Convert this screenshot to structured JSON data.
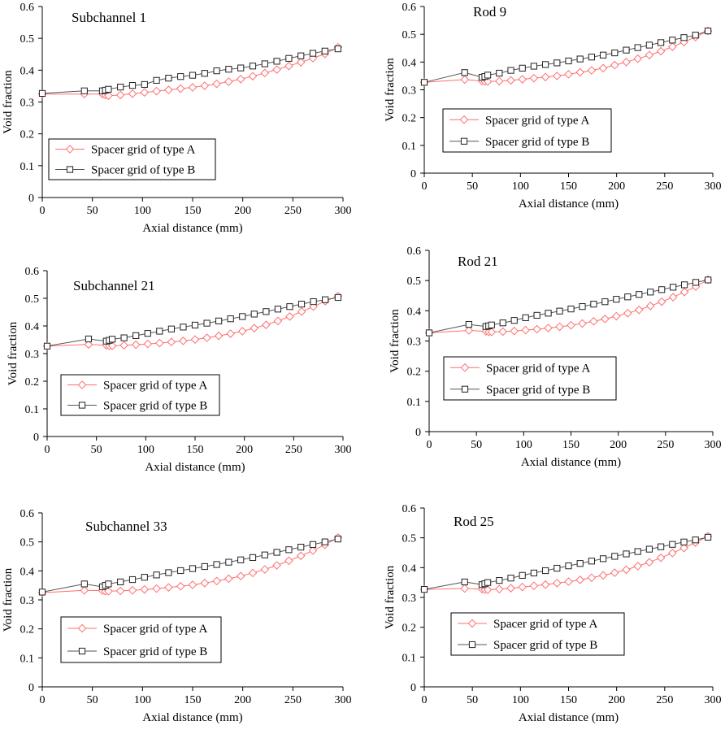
{
  "colors": {
    "series_a": "#ff6f6f",
    "series_b": "#555555",
    "marker_b": "#222222",
    "axis": "#000000",
    "legend_border": "#000000"
  },
  "chart_data": [
    {
      "type": "line",
      "title": "Subchannel 1",
      "xlabel": "Axial distance (mm)",
      "ylabel": "Void fraction",
      "xlim": [
        0,
        300
      ],
      "ylim": [
        0,
        0.6
      ],
      "xticks": [
        "0",
        "50",
        "100",
        "150",
        "200",
        "250",
        "300"
      ],
      "yticks": [
        "0",
        "0.1",
        "0.2",
        "0.3",
        "0.4",
        "0.5",
        "0.6"
      ],
      "legend": "center-left",
      "grid": false,
      "series": [
        {
          "name": "Spacer grid of type A",
          "marker": "diamond",
          "x": [
            0,
            42,
            60,
            63,
            66,
            78,
            90,
            102,
            114,
            126,
            138,
            150,
            162,
            174,
            186,
            198,
            210,
            222,
            234,
            246,
            258,
            270,
            282,
            295
          ],
          "y": [
            0.325,
            0.325,
            0.325,
            0.322,
            0.32,
            0.322,
            0.326,
            0.33,
            0.334,
            0.338,
            0.342,
            0.346,
            0.351,
            0.357,
            0.364,
            0.372,
            0.381,
            0.391,
            0.402,
            0.413,
            0.425,
            0.438,
            0.451,
            0.472
          ]
        },
        {
          "name": "Spacer grid of type B",
          "marker": "square",
          "x": [
            0,
            42,
            60,
            63,
            66,
            78,
            90,
            102,
            114,
            126,
            138,
            150,
            162,
            174,
            186,
            198,
            210,
            222,
            234,
            246,
            258,
            270,
            282,
            295
          ],
          "y": [
            0.327,
            0.335,
            0.335,
            0.337,
            0.34,
            0.347,
            0.352,
            0.355,
            0.368,
            0.375,
            0.38,
            0.384,
            0.39,
            0.398,
            0.403,
            0.407,
            0.413,
            0.42,
            0.428,
            0.437,
            0.445,
            0.453,
            0.46,
            0.467
          ]
        }
      ]
    },
    {
      "type": "line",
      "title": "Rod 9",
      "xlabel": "Axial distance (mm)",
      "ylabel": "Void fraction",
      "xlim": [
        0,
        300
      ],
      "ylim": [
        0,
        0.6
      ],
      "xticks": [
        "0",
        "50",
        "100",
        "150",
        "200",
        "250",
        "300"
      ],
      "yticks": [
        "0",
        "0.1",
        "0.2",
        "0.3",
        "0.4",
        "0.5",
        "0.6"
      ],
      "legend": "center-left",
      "grid": false,
      "series": [
        {
          "name": "Spacer grid of type A",
          "marker": "diamond",
          "x": [
            0,
            42,
            60,
            63,
            66,
            78,
            90,
            102,
            114,
            126,
            138,
            150,
            162,
            174,
            186,
            198,
            210,
            222,
            234,
            246,
            258,
            270,
            282,
            295
          ],
          "y": [
            0.327,
            0.337,
            0.332,
            0.33,
            0.33,
            0.331,
            0.334,
            0.338,
            0.342,
            0.346,
            0.35,
            0.356,
            0.363,
            0.37,
            0.378,
            0.389,
            0.4,
            0.412,
            0.425,
            0.439,
            0.455,
            0.472,
            0.49,
            0.512
          ]
        },
        {
          "name": "Spacer grid of type B",
          "marker": "square",
          "x": [
            0,
            42,
            60,
            63,
            66,
            78,
            90,
            102,
            114,
            126,
            138,
            150,
            162,
            174,
            186,
            198,
            210,
            222,
            234,
            246,
            258,
            270,
            282,
            295
          ],
          "y": [
            0.327,
            0.362,
            0.345,
            0.348,
            0.353,
            0.36,
            0.37,
            0.378,
            0.385,
            0.391,
            0.397,
            0.404,
            0.411,
            0.418,
            0.425,
            0.433,
            0.443,
            0.452,
            0.461,
            0.47,
            0.479,
            0.488,
            0.497,
            0.512
          ]
        }
      ]
    },
    {
      "type": "line",
      "title": "Subchannel 21",
      "xlabel": "Axial distance (mm)",
      "ylabel": "Void fraction",
      "xlim": [
        0,
        300
      ],
      "ylim": [
        0,
        0.6
      ],
      "xticks": [
        "0",
        "50",
        "100",
        "150",
        "200",
        "250",
        "300"
      ],
      "yticks": [
        "0",
        "0.1",
        "0.2",
        "0.3",
        "0.4",
        "0.5",
        "0.6"
      ],
      "legend": "center-left",
      "grid": false,
      "series": [
        {
          "name": "Spacer grid of type A",
          "marker": "diamond",
          "x": [
            0,
            42,
            60,
            63,
            66,
            78,
            90,
            102,
            114,
            126,
            138,
            150,
            162,
            174,
            186,
            198,
            210,
            222,
            234,
            246,
            258,
            270,
            282,
            295
          ],
          "y": [
            0.327,
            0.333,
            0.33,
            0.328,
            0.328,
            0.33,
            0.332,
            0.335,
            0.338,
            0.342,
            0.346,
            0.351,
            0.357,
            0.364,
            0.372,
            0.381,
            0.392,
            0.404,
            0.418,
            0.434,
            0.452,
            0.47,
            0.49,
            0.508
          ]
        },
        {
          "name": "Spacer grid of type B",
          "marker": "square",
          "x": [
            0,
            42,
            60,
            63,
            66,
            78,
            90,
            102,
            114,
            126,
            138,
            150,
            162,
            174,
            186,
            198,
            210,
            222,
            234,
            246,
            258,
            270,
            282,
            295
          ],
          "y": [
            0.327,
            0.353,
            0.345,
            0.348,
            0.352,
            0.357,
            0.365,
            0.373,
            0.381,
            0.389,
            0.396,
            0.403,
            0.41,
            0.418,
            0.426,
            0.434,
            0.443,
            0.452,
            0.461,
            0.47,
            0.479,
            0.488,
            0.495,
            0.503
          ]
        }
      ]
    },
    {
      "type": "line",
      "title": "Rod 21",
      "xlabel": "Axial distance (mm)",
      "ylabel": "Void fraction",
      "xlim": [
        0,
        300
      ],
      "ylim": [
        0,
        0.6
      ],
      "xticks": [
        "0",
        "50",
        "100",
        "150",
        "200",
        "250",
        "300"
      ],
      "yticks": [
        "0",
        "0.1",
        "0.2",
        "0.3",
        "0.4",
        "0.5",
        "0.6"
      ],
      "legend": "center-left",
      "grid": false,
      "series": [
        {
          "name": "Spacer grid of type A",
          "marker": "diamond",
          "x": [
            0,
            42,
            60,
            63,
            66,
            78,
            90,
            102,
            114,
            126,
            138,
            150,
            162,
            174,
            186,
            198,
            210,
            222,
            234,
            246,
            258,
            270,
            282,
            295
          ],
          "y": [
            0.327,
            0.335,
            0.332,
            0.33,
            0.33,
            0.331,
            0.333,
            0.336,
            0.339,
            0.343,
            0.347,
            0.352,
            0.358,
            0.365,
            0.373,
            0.382,
            0.392,
            0.403,
            0.416,
            0.43,
            0.445,
            0.462,
            0.48,
            0.503
          ]
        },
        {
          "name": "Spacer grid of type B",
          "marker": "square",
          "x": [
            0,
            42,
            60,
            63,
            66,
            78,
            90,
            102,
            114,
            126,
            138,
            150,
            162,
            174,
            186,
            198,
            210,
            222,
            234,
            246,
            258,
            270,
            282,
            295
          ],
          "y": [
            0.327,
            0.355,
            0.348,
            0.35,
            0.353,
            0.36,
            0.368,
            0.377,
            0.385,
            0.392,
            0.399,
            0.406,
            0.414,
            0.422,
            0.43,
            0.438,
            0.446,
            0.454,
            0.462,
            0.47,
            0.478,
            0.486,
            0.494,
            0.502
          ]
        }
      ]
    },
    {
      "type": "line",
      "title": "Subchannel 33",
      "xlabel": "Axial distance (mm)",
      "ylabel": "Void fraction",
      "xlim": [
        0,
        300
      ],
      "ylim": [
        0,
        0.6
      ],
      "xticks": [
        "0",
        "50",
        "100",
        "150",
        "200",
        "250",
        "300"
      ],
      "yticks": [
        "0",
        "0.1",
        "0.2",
        "0.3",
        "0.4",
        "0.5",
        "0.6"
      ],
      "legend": "center-left",
      "grid": false,
      "series": [
        {
          "name": "Spacer grid of type A",
          "marker": "diamond",
          "x": [
            0,
            42,
            60,
            63,
            66,
            78,
            90,
            102,
            114,
            126,
            138,
            150,
            162,
            174,
            186,
            198,
            210,
            222,
            234,
            246,
            258,
            270,
            282,
            295
          ],
          "y": [
            0.325,
            0.333,
            0.332,
            0.33,
            0.33,
            0.331,
            0.333,
            0.336,
            0.339,
            0.343,
            0.347,
            0.352,
            0.358,
            0.365,
            0.373,
            0.382,
            0.393,
            0.405,
            0.419,
            0.435,
            0.452,
            0.47,
            0.49,
            0.515
          ]
        },
        {
          "name": "Spacer grid of type B",
          "marker": "square",
          "x": [
            0,
            42,
            60,
            63,
            66,
            78,
            90,
            102,
            114,
            126,
            138,
            150,
            162,
            174,
            186,
            198,
            210,
            222,
            234,
            246,
            258,
            270,
            282,
            295
          ],
          "y": [
            0.327,
            0.355,
            0.345,
            0.35,
            0.355,
            0.362,
            0.37,
            0.378,
            0.386,
            0.394,
            0.401,
            0.408,
            0.415,
            0.422,
            0.43,
            0.438,
            0.446,
            0.455,
            0.464,
            0.473,
            0.482,
            0.491,
            0.5,
            0.51
          ]
        }
      ]
    },
    {
      "type": "line",
      "title": "Rod 25",
      "xlabel": "Axial distance (mm)",
      "ylabel": "Void fraction",
      "xlim": [
        0,
        300
      ],
      "ylim": [
        0,
        0.6
      ],
      "xticks": [
        "0",
        "50",
        "100",
        "150",
        "200",
        "250",
        "300"
      ],
      "yticks": [
        "0",
        "0.1",
        "0.2",
        "0.3",
        "0.4",
        "0.5",
        "0.6"
      ],
      "legend": "center-left",
      "grid": false,
      "series": [
        {
          "name": "Spacer grid of type A",
          "marker": "diamond",
          "x": [
            0,
            42,
            60,
            63,
            66,
            78,
            90,
            102,
            114,
            126,
            138,
            150,
            162,
            174,
            186,
            198,
            210,
            222,
            234,
            246,
            258,
            270,
            282,
            295
          ],
          "y": [
            0.327,
            0.33,
            0.328,
            0.326,
            0.326,
            0.328,
            0.331,
            0.335,
            0.339,
            0.343,
            0.348,
            0.353,
            0.359,
            0.366,
            0.374,
            0.383,
            0.393,
            0.405,
            0.418,
            0.433,
            0.449,
            0.466,
            0.484,
            0.505
          ]
        },
        {
          "name": "Spacer grid of type B",
          "marker": "square",
          "x": [
            0,
            42,
            60,
            63,
            66,
            78,
            90,
            102,
            114,
            126,
            138,
            150,
            162,
            174,
            186,
            198,
            210,
            222,
            234,
            246,
            258,
            270,
            282,
            295
          ],
          "y": [
            0.327,
            0.352,
            0.343,
            0.346,
            0.35,
            0.357,
            0.365,
            0.374,
            0.382,
            0.39,
            0.398,
            0.406,
            0.414,
            0.422,
            0.43,
            0.438,
            0.446,
            0.454,
            0.462,
            0.47,
            0.478,
            0.486,
            0.493,
            0.502
          ]
        }
      ]
    }
  ]
}
